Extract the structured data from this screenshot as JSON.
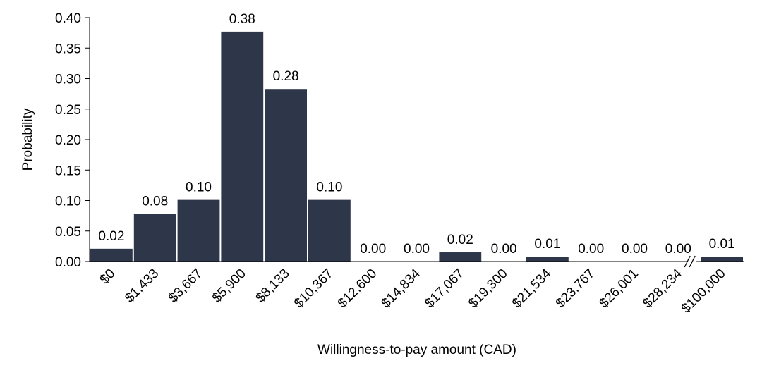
{
  "chart_data": {
    "type": "bar",
    "title": "",
    "xlabel": "Willingness-to-pay amount (CAD)",
    "ylabel": "Probability",
    "ylim": [
      0,
      0.4
    ],
    "yticks": [
      "0.00",
      "0.05",
      "0.10",
      "0.15",
      "0.20",
      "0.25",
      "0.30",
      "0.35",
      "0.40"
    ],
    "categories": [
      "$0",
      "$1,433",
      "$3,667",
      "$5,900",
      "$8,133",
      "$10,367",
      "$12,600",
      "$14,834",
      "$17,067",
      "$19,300",
      "$21,534",
      "$23,767",
      "$26,001",
      "$28,234",
      "$100,000"
    ],
    "values": [
      0.021,
      0.078,
      0.101,
      0.377,
      0.283,
      0.101,
      0.0,
      0.0,
      0.015,
      0.0,
      0.008,
      0.0,
      0.0,
      0.0,
      0.008
    ],
    "value_labels": [
      "0.02",
      "0.08",
      "0.10",
      "0.38",
      "0.28",
      "0.10",
      "0.00",
      "0.00",
      "0.02",
      "0.00",
      "0.01",
      "0.00",
      "0.00",
      "0.00",
      "0.01"
    ],
    "axis_break_before_last": true,
    "bar_color": "#2e3649",
    "grid": false,
    "legend": "none"
  }
}
